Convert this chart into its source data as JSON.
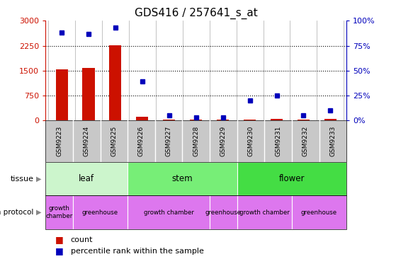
{
  "title": "GDS416 / 257641_s_at",
  "samples": [
    "GSM9223",
    "GSM9224",
    "GSM9225",
    "GSM9226",
    "GSM9227",
    "GSM9228",
    "GSM9229",
    "GSM9230",
    "GSM9231",
    "GSM9232",
    "GSM9233"
  ],
  "counts": [
    1540,
    1570,
    2260,
    110,
    35,
    25,
    25,
    35,
    55,
    25,
    45
  ],
  "percentiles": [
    88,
    87,
    93,
    39,
    5,
    3,
    3,
    20,
    25,
    5,
    10
  ],
  "tissue_groups": [
    {
      "label": "leaf",
      "start": 0,
      "end": 2,
      "color": "#d4f7d4"
    },
    {
      "label": "stem",
      "start": 3,
      "end": 6,
      "color": "#7de87d"
    },
    {
      "label": "flower",
      "start": 7,
      "end": 10,
      "color": "#55dd55"
    }
  ],
  "protocol_groups": [
    {
      "label": "growth\nchamber",
      "start": 0,
      "end": 0
    },
    {
      "label": "greenhouse",
      "start": 1,
      "end": 2
    },
    {
      "label": "growth chamber",
      "start": 3,
      "end": 5
    },
    {
      "label": "greenhouse",
      "start": 6,
      "end": 6
    },
    {
      "label": "growth chamber",
      "start": 7,
      "end": 8
    },
    {
      "label": "greenhouse",
      "start": 9,
      "end": 10
    }
  ],
  "protocol_color": "#dd77ee",
  "ylim_left": [
    0,
    3000
  ],
  "ylim_right": [
    0,
    100
  ],
  "yticks_left": [
    0,
    750,
    1500,
    2250,
    3000
  ],
  "yticks_right": [
    0,
    25,
    50,
    75,
    100
  ],
  "bar_color": "#cc1100",
  "dot_color": "#0000bb",
  "title_fontsize": 11,
  "left_tick_color": "#cc1100",
  "right_tick_color": "#0000bb",
  "sample_label_bg": "#c8c8c8",
  "sample_label_sep": "#ffffff"
}
